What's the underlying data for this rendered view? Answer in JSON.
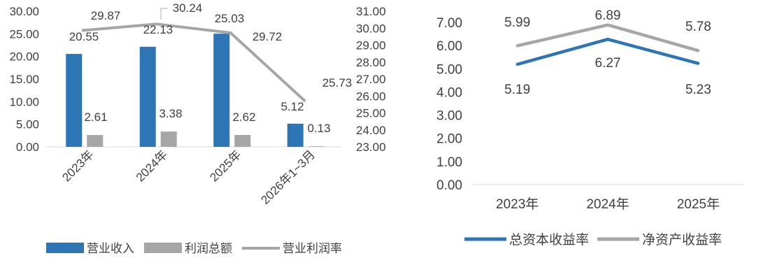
{
  "colors": {
    "blue": "#2e75b6",
    "gray": "#a6a6a6",
    "axis_line": "#d9d9d9",
    "text": "#404040"
  },
  "chart_data": [
    {
      "type": "bar",
      "title": "",
      "categories": [
        "2023年",
        "2024年",
        "2025年",
        "2026年1~3月"
      ],
      "series": [
        {
          "name": "营业收入",
          "kind": "bar",
          "axis": "left",
          "color": "#2e75b6",
          "values": [
            20.55,
            22.13,
            25.03,
            5.12
          ]
        },
        {
          "name": "利润总额",
          "kind": "bar",
          "axis": "left",
          "color": "#a6a6a6",
          "values": [
            2.61,
            3.38,
            2.62,
            0.13
          ]
        },
        {
          "name": "营业利润率",
          "kind": "line",
          "axis": "right",
          "color": "#a6a6a6",
          "values": [
            29.87,
            30.24,
            29.72,
            25.73
          ]
        }
      ],
      "left_ylim": [
        0,
        30
      ],
      "left_ticks": [
        "30.00",
        "25.00",
        "20.00",
        "15.00",
        "10.00",
        "5.00",
        "0.00"
      ],
      "right_ylim": [
        23,
        31
      ],
      "right_ticks": [
        "31.00",
        "30.00",
        "29.00",
        "28.00",
        "27.00",
        "26.00",
        "25.00",
        "24.00",
        "23.00"
      ],
      "legend_position": "bottom-left",
      "grid": false
    },
    {
      "type": "line",
      "title": "",
      "categories": [
        "2023年",
        "2024年",
        "2025年"
      ],
      "series": [
        {
          "name": "总资本收益率",
          "color": "#2e75b6",
          "values": [
            5.19,
            6.27,
            5.23
          ]
        },
        {
          "name": "净资产收益率",
          "color": "#a6a6a6",
          "values": [
            5.99,
            6.89,
            5.78
          ]
        }
      ],
      "ylim": [
        0,
        7
      ],
      "yticks": [
        "7.00",
        "6.00",
        "5.00",
        "4.00",
        "3.00",
        "2.00",
        "1.00",
        "0.00"
      ],
      "legend_position": "bottom",
      "grid": false
    }
  ]
}
